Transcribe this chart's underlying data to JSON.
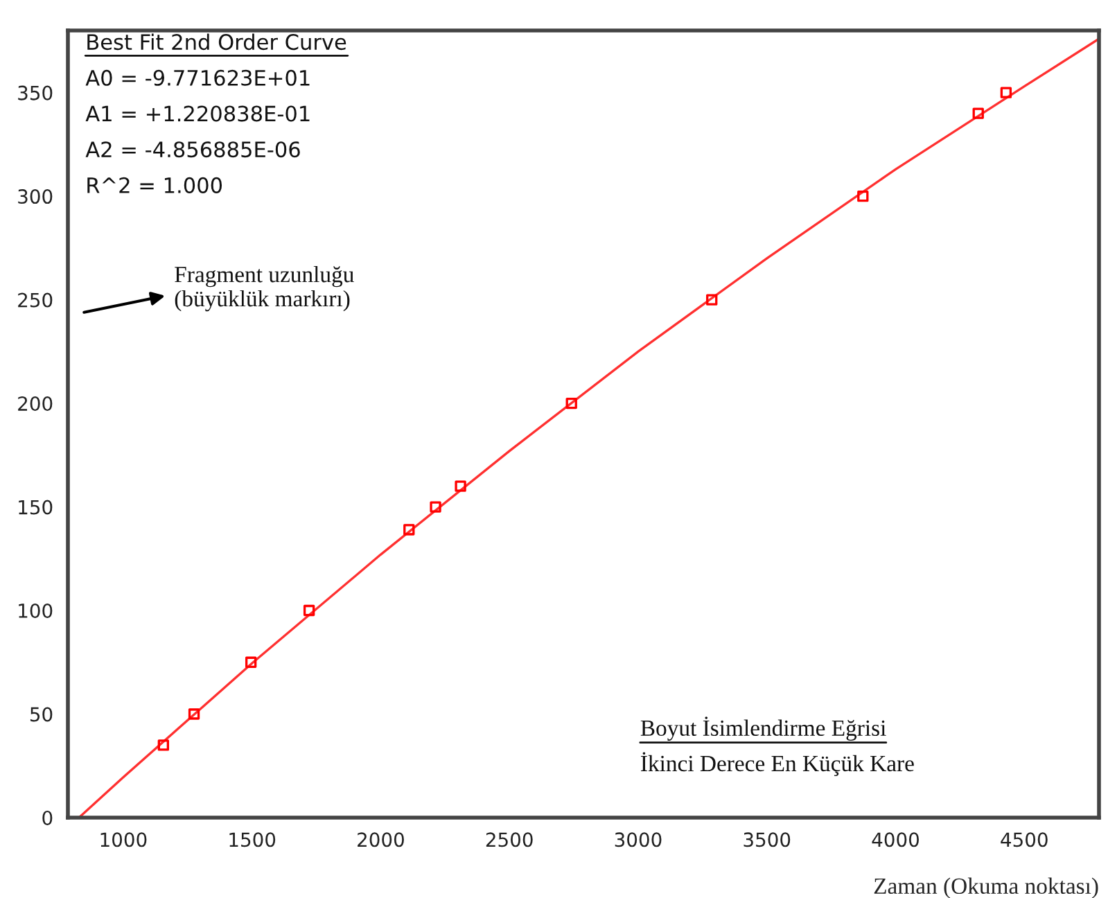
{
  "chart_data": {
    "type": "scatter",
    "xlabel": "Zaman (Okuma noktası)",
    "annotations": [
      "Best Fit 2nd Order Curve",
      "A0 = -9.771623E+01",
      "A1 = +1.220838E-01",
      "A2 = -4.856885E-06",
      "R^2 = 1.000",
      "Fragment uzunluğu\n(büyüklük markırı)",
      "Boyut İsimlendirme Eğrisi",
      "İkinci Derece En Küçük Kare"
    ],
    "series": [
      {
        "type": "line",
        "color": "#ff3030",
        "marker": "none",
        "x": [
          828,
          1000,
          1500,
          2000,
          2500,
          3000,
          3500,
          4000,
          4500,
          4790
        ],
        "values": [
          0,
          19.5,
          74.5,
          127,
          177,
          225,
          270,
          313,
          353,
          376
        ]
      },
      {
        "color": "#ff0000",
        "marker": "square",
        "x": [
          1156,
          1275,
          1496,
          1722,
          2110,
          2213,
          2310,
          2741,
          3286,
          3873,
          4321,
          4429
        ],
        "values": [
          35,
          50,
          75,
          100,
          139,
          150,
          160,
          200,
          250,
          300,
          340,
          350
        ]
      }
    ],
    "xlim": [
      785,
      4790
    ],
    "ylim": [
      0,
      380
    ],
    "xticks": [
      1000,
      1500,
      2000,
      2500,
      3000,
      3500,
      4000,
      4500
    ],
    "yticks": [
      0,
      50,
      100,
      150,
      200,
      250,
      300,
      350
    ],
    "grid": false,
    "legend": false
  }
}
